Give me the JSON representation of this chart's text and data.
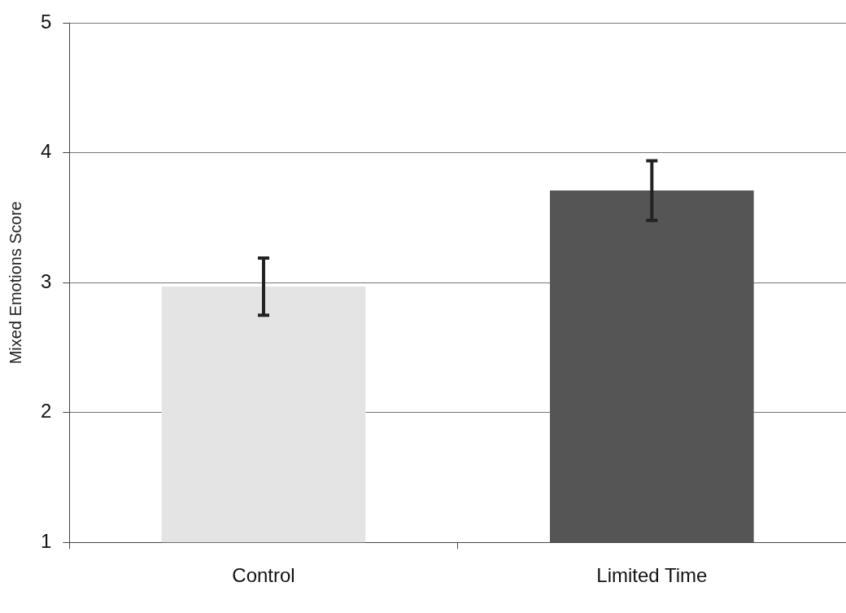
{
  "chart_data": {
    "type": "bar",
    "ylabel": "Mixed Emotions Score",
    "categories": [
      "Control",
      "Limited Time"
    ],
    "values": [
      2.97,
      3.71
    ],
    "errors": [
      0.22,
      0.23
    ],
    "colors": [
      "#e4e4e4",
      "#555555"
    ],
    "ylim": [
      1,
      5
    ],
    "yticks": [
      1,
      2,
      3,
      4,
      5
    ],
    "grid": "y",
    "legend": false
  }
}
